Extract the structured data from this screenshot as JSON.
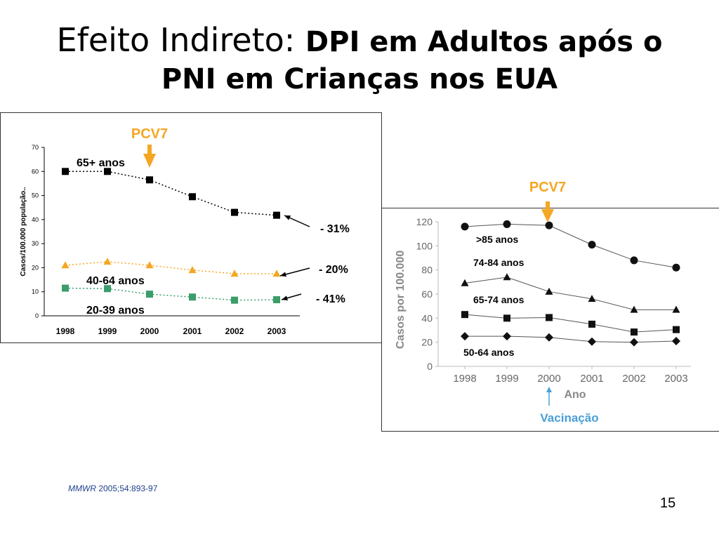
{
  "slide": {
    "title_part1": "Efeito Indireto:",
    "title_part2": "DPI em Adultos após o",
    "title_line2": "PNI em Crianças nos EUA",
    "source_journal": "MMWR",
    "source_ref": "2005;54:893-97",
    "page_number": "15"
  },
  "chart_data": [
    {
      "type": "line",
      "marker_label": "PCV7",
      "marker_x": "2000",
      "ylabel": "Casos/100.000 população..",
      "xlabel": "",
      "ylim": [
        0,
        70
      ],
      "yticks": [
        "0",
        "10",
        "20",
        "30",
        "40",
        "50",
        "60",
        "70"
      ],
      "categories": [
        "1998",
        "1999",
        "2000",
        "2001",
        "2002",
        "2003"
      ],
      "series": [
        {
          "name": "65+ anos",
          "values": [
            60,
            60,
            56.5,
            49.5,
            43,
            41.8
          ],
          "color": "#000000",
          "marker": "square",
          "change": "- 31%"
        },
        {
          "name": "40-64 anos",
          "values": [
            21,
            22.5,
            21,
            19,
            17.5,
            17.5
          ],
          "color": "#f5a623",
          "marker": "triangle",
          "change": "- 20%"
        },
        {
          "name": "20-39 anos",
          "values": [
            11.5,
            11.3,
            9,
            7.8,
            6.5,
            6.7
          ],
          "color": "#3a9d6a",
          "marker": "square",
          "change": "- 41%"
        }
      ]
    },
    {
      "type": "line",
      "marker_label": "PCV7",
      "marker_x": "2000",
      "annotation": "Vacinação",
      "ylabel": "Casos por 100.000",
      "xlabel": "Ano",
      "ylim": [
        0,
        120
      ],
      "yticks": [
        "0",
        "20",
        "40",
        "60",
        "80",
        "100",
        "120"
      ],
      "categories": [
        "1998",
        "1999",
        "2000",
        "2001",
        "2002",
        "2003"
      ],
      "series": [
        {
          "name": ">85 anos",
          "values": [
            116,
            118,
            117,
            101,
            88,
            82
          ],
          "marker": "circle"
        },
        {
          "name": "74-84 anos",
          "values": [
            69,
            74,
            62,
            56,
            47,
            47
          ],
          "marker": "triangle"
        },
        {
          "name": "65-74 anos",
          "values": [
            43,
            40,
            40.5,
            35,
            28.5,
            30.5
          ],
          "marker": "square"
        },
        {
          "name": "50-64 anos",
          "values": [
            25,
            25,
            24,
            20.5,
            20,
            21
          ],
          "marker": "diamond"
        }
      ]
    }
  ],
  "colors": {
    "pcv7": "#f5a623",
    "vacinacao": "#4a9fd8"
  }
}
